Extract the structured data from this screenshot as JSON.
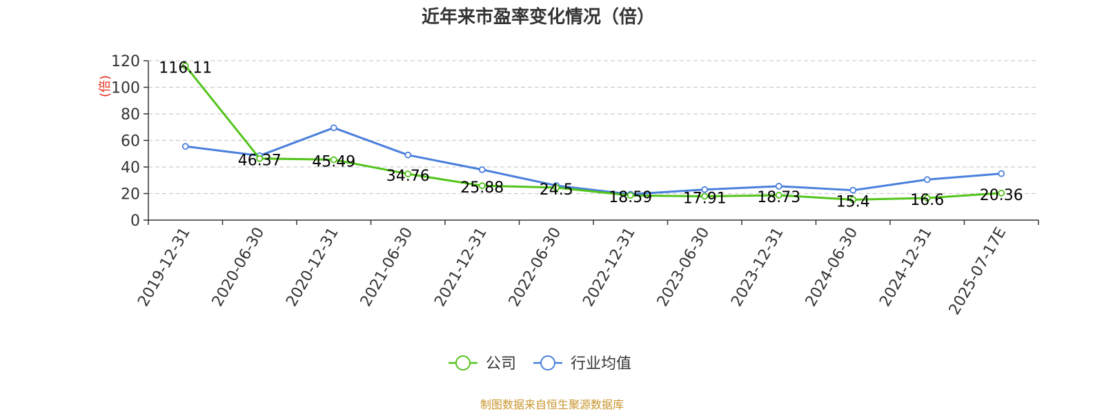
{
  "chart_data": {
    "type": "line",
    "title": "近年来市盈率变化情况（倍）",
    "ylabel": "(倍)",
    "ylim": [
      0,
      120
    ],
    "yticks": [
      0,
      20,
      40,
      60,
      80,
      100,
      120
    ],
    "grid": true,
    "legend_position": "bottom",
    "categories": [
      "2019-12-31",
      "2020-06-30",
      "2020-12-31",
      "2021-06-30",
      "2021-12-31",
      "2022-06-30",
      "2022-12-31",
      "2023-06-30",
      "2023-12-31",
      "2024-06-30",
      "2024-12-31",
      "2025-07-17E"
    ],
    "series": [
      {
        "name": "公司",
        "color": "#52c41a",
        "values": [
          116.11,
          46.37,
          45.49,
          34.76,
          25.88,
          24.5,
          18.59,
          17.91,
          18.73,
          15.4,
          16.6,
          20.36
        ],
        "labels": [
          "116.11",
          "46.37",
          "45.49",
          "34.76",
          "25.88",
          "24.5",
          "18.59",
          "17.91",
          "18.73",
          "15.4",
          "16.6",
          "20.36"
        ]
      },
      {
        "name": "行业均值",
        "color": "#4a7fdc",
        "values": [
          55.5,
          48.5,
          69.5,
          49.0,
          38.0,
          26.0,
          19.5,
          23.0,
          25.5,
          22.5,
          30.5,
          35.0
        ]
      }
    ],
    "source": "制图数据来自恒生聚源数据库",
    "colors": {
      "unit": "#e0301e",
      "source": "#c8962e",
      "axis": "#333333",
      "grid": "#cccccc"
    }
  }
}
